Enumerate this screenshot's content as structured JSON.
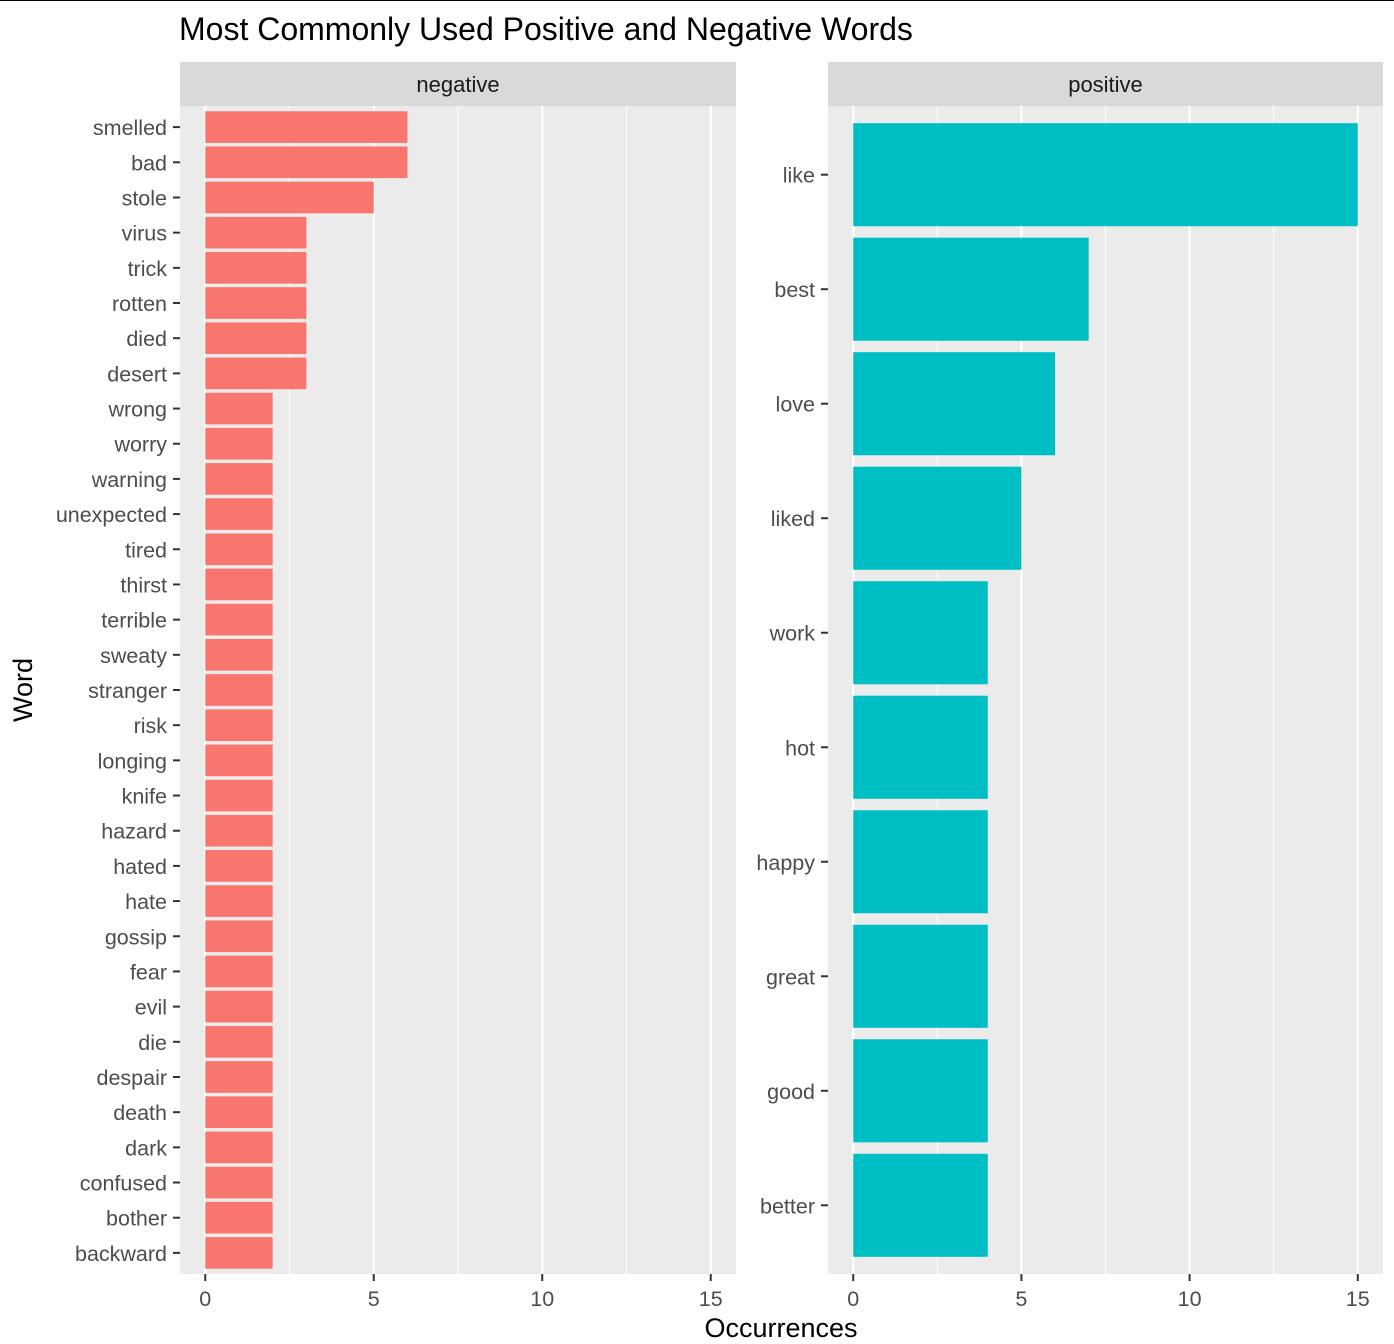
{
  "chart_data": {
    "type": "bar",
    "title": "Most Commonly Used Positive and Negative Words",
    "xlabel": "Occurrences",
    "ylabel": "Word",
    "xlim": [
      0,
      15
    ],
    "x_ticks": [
      0,
      5,
      10,
      15
    ],
    "grid": true,
    "legend": "none",
    "colors": {
      "negative": "#F8766D",
      "positive": "#00BFC4",
      "panel": "#EBEBEB",
      "strip": "#D9D9D9",
      "grid": "#FFFFFF"
    },
    "panels": [
      {
        "name": "negative",
        "color": "#F8766D",
        "categories": [
          "smelled",
          "bad",
          "stole",
          "virus",
          "trick",
          "rotten",
          "died",
          "desert",
          "wrong",
          "worry",
          "warning",
          "unexpected",
          "tired",
          "thirst",
          "terrible",
          "sweaty",
          "stranger",
          "risk",
          "longing",
          "knife",
          "hazard",
          "hated",
          "hate",
          "gossip",
          "fear",
          "evil",
          "die",
          "despair",
          "death",
          "dark",
          "confused",
          "bother",
          "backward"
        ],
        "values": [
          6,
          6,
          5,
          3,
          3,
          3,
          3,
          3,
          2,
          2,
          2,
          2,
          2,
          2,
          2,
          2,
          2,
          2,
          2,
          2,
          2,
          2,
          2,
          2,
          2,
          2,
          2,
          2,
          2,
          2,
          2,
          2,
          2
        ]
      },
      {
        "name": "positive",
        "color": "#00BFC4",
        "categories": [
          "like",
          "best",
          "love",
          "liked",
          "work",
          "hot",
          "happy",
          "great",
          "good",
          "better"
        ],
        "values": [
          15,
          7,
          6,
          5,
          4,
          4,
          4,
          4,
          4,
          4
        ]
      }
    ]
  }
}
